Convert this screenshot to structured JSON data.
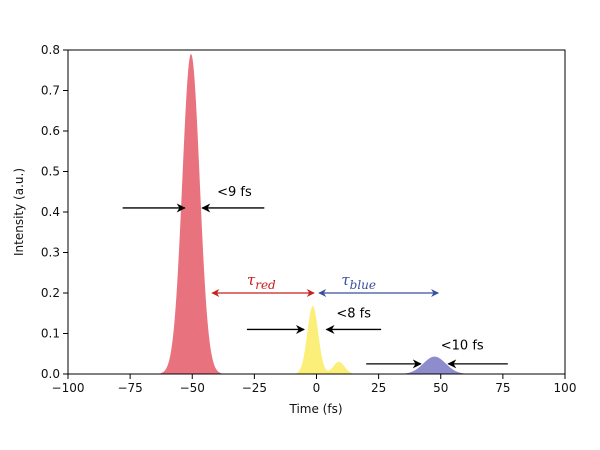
{
  "chart_data": {
    "type": "area",
    "title": "",
    "xlabel": "Time (fs)",
    "ylabel": "Intensity (a.u.)",
    "xlim": [
      -100,
      100
    ],
    "ylim": [
      0,
      0.8
    ],
    "xticks": [
      -100,
      -75,
      -50,
      -25,
      0,
      25,
      50,
      75,
      100
    ],
    "xtick_labels": [
      "−100",
      "−75",
      "−50",
      "−25",
      "0",
      "25",
      "50",
      "75",
      "100"
    ],
    "yticks": [
      0.0,
      0.1,
      0.2,
      0.3,
      0.4,
      0.5,
      0.6,
      0.7,
      0.8
    ],
    "ytick_labels": [
      "0.0",
      "0.1",
      "0.2",
      "0.3",
      "0.4",
      "0.5",
      "0.6",
      "0.7",
      "0.8"
    ],
    "grid": false,
    "series": [
      {
        "color": "#e8737e",
        "peaks": [
          {
            "center": -50.5,
            "amplitude": 0.79,
            "sigma": 3.5
          }
        ]
      },
      {
        "color": "#fbef7a",
        "peaks": [
          {
            "center": -1.5,
            "amplitude": 0.168,
            "sigma": 2.2
          },
          {
            "center": 9,
            "amplitude": 0.03,
            "sigma": 2.3
          }
        ]
      },
      {
        "color": "#8f8ccd",
        "peaks": [
          {
            "center": 47.5,
            "amplitude": 0.043,
            "sigma": 4.5
          }
        ]
      }
    ],
    "annotations": {
      "fwhm": [
        {
          "text": "<9 fs",
          "y": 0.41,
          "left_from": -78,
          "left_to": -53,
          "right_from": -21,
          "right_to": -46,
          "text_x": -40,
          "text_y": 0.44
        },
        {
          "text": "<8 fs",
          "y": 0.11,
          "left_from": -28,
          "left_to": -5,
          "right_from": 26,
          "right_to": 4,
          "text_x": 8,
          "text_y": 0.14
        },
        {
          "text": "<10 fs",
          "y": 0.025,
          "left_from": 20,
          "left_to": 42,
          "right_from": 77,
          "right_to": 53,
          "text_x": 50,
          "text_y": 0.06
        }
      ],
      "intervals": [
        {
          "label_base": "τ",
          "label_sub": "red",
          "color": "#c8201e",
          "from": -42,
          "to": -1,
          "y": 0.2,
          "label_x": -28,
          "label_y": 0.22
        },
        {
          "label_base": "τ",
          "label_sub": "blue",
          "color": "#3a4fa0",
          "from": 1,
          "to": 49,
          "y": 0.2,
          "label_x": 10,
          "label_y": 0.22
        }
      ]
    }
  }
}
